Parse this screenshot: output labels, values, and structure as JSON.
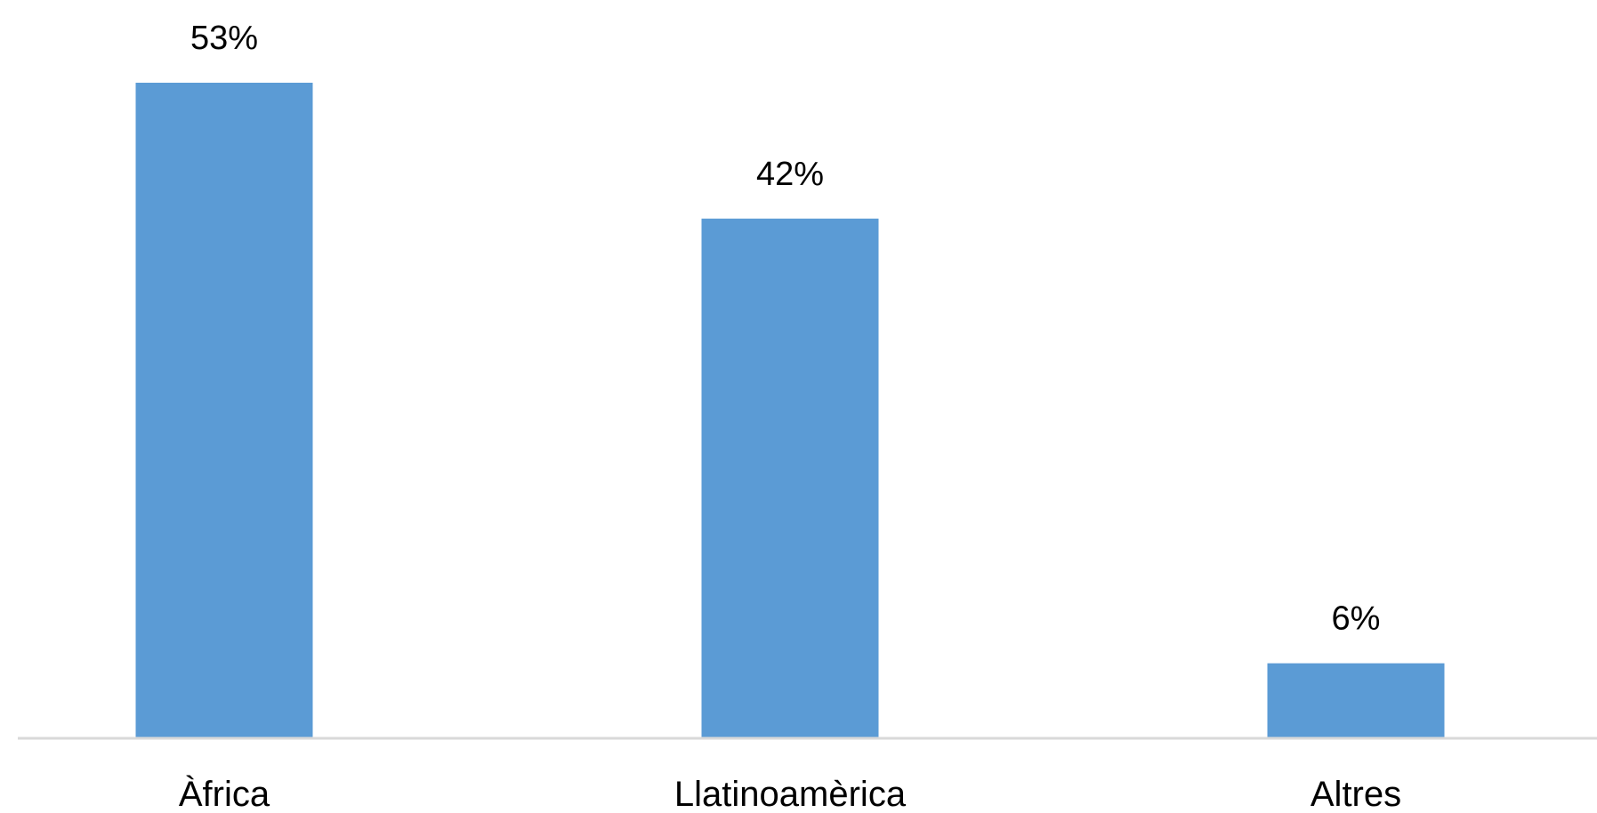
{
  "chart_data": {
    "type": "bar",
    "categories": [
      "Àfrica",
      "Llatinoamèrica",
      "Altres"
    ],
    "values": [
      53,
      42,
      6
    ],
    "data_labels": [
      "53%",
      "42%",
      "6%"
    ],
    "ylim": [
      0,
      53
    ],
    "grid": false,
    "legend": "none",
    "colors": {
      "bar": "#5b9bd5",
      "axis": "#d9d9d9",
      "text": "#000000"
    }
  }
}
